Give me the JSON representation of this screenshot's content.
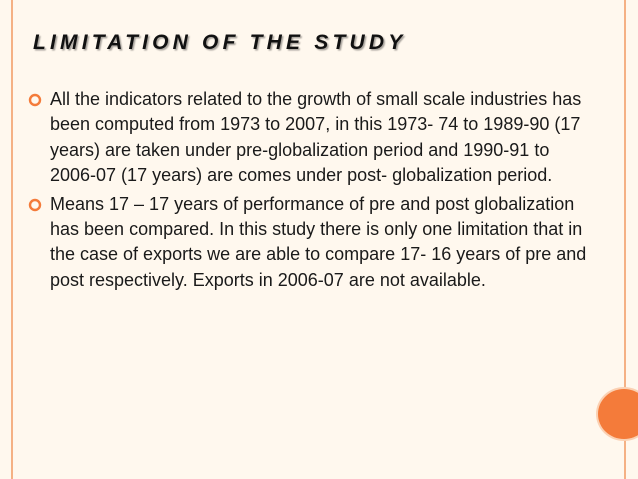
{
  "slide": {
    "title": "LIMITATION OF THE STUDY",
    "bullets": [
      {
        "icon": "hollow-circle-bullet-icon",
        "text": "All the indicators related to the growth of small scale industries has been computed from 1973 to 2007, in this 1973- 74 to 1989-90 (17 years) are taken under pre-globalization period and 1990-91 to 2006-07 (17 years) are comes under post- globalization period."
      },
      {
        "icon": "hollow-circle-bullet-icon",
        "text": "Means 17 – 17 years of performance of pre and post globalization has been compared. In this study there is only one limitation that in the case of exports we are able to compare 17- 16 years of pre and post respectively. Exports in 2006-07 are not available."
      }
    ]
  },
  "colors": {
    "background": "#fff8ee",
    "frame_line": "#f5b184",
    "bullet_accent": "#f47b3a",
    "title": "#111111",
    "body_text": "#1a1a1a"
  }
}
